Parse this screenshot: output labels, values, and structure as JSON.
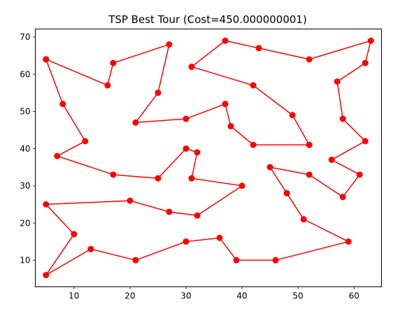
{
  "chart_data": {
    "type": "line",
    "title": "TSP Best Tour (Cost=450.000000001)",
    "xlabel": "",
    "ylabel": "",
    "xlim": [
      3.1,
      64.9
    ],
    "ylim": [
      2.85,
      72.15
    ],
    "xticks": [
      10,
      20,
      30,
      40,
      50,
      60
    ],
    "yticks": [
      10,
      20,
      30,
      40,
      50,
      60,
      70
    ],
    "grid": false,
    "legend": "none",
    "series": [
      {
        "color": "#ff0000",
        "marker": "circle",
        "points": [
          [
            5,
            64
          ],
          [
            16,
            57
          ],
          [
            17,
            63
          ],
          [
            27,
            68
          ],
          [
            25,
            55
          ],
          [
            21,
            47
          ],
          [
            30,
            48
          ],
          [
            37,
            52
          ],
          [
            38,
            46
          ],
          [
            42,
            41
          ],
          [
            52,
            41
          ],
          [
            49,
            49
          ],
          [
            42,
            57
          ],
          [
            31,
            62
          ],
          [
            37,
            69
          ],
          [
            43,
            67
          ],
          [
            52,
            64
          ],
          [
            63,
            69
          ],
          [
            62,
            63
          ],
          [
            57,
            58
          ],
          [
            58,
            48
          ],
          [
            62,
            42
          ],
          [
            56,
            37
          ],
          [
            61,
            33
          ],
          [
            58,
            27
          ],
          [
            52,
            33
          ],
          [
            45,
            35
          ],
          [
            48,
            28
          ],
          [
            51,
            21
          ],
          [
            59,
            15
          ],
          [
            46,
            10
          ],
          [
            39,
            10
          ],
          [
            36,
            16
          ],
          [
            30,
            15
          ],
          [
            21,
            10
          ],
          [
            13,
            13
          ],
          [
            5,
            6
          ],
          [
            10,
            17
          ],
          [
            5,
            25
          ],
          [
            20,
            26
          ],
          [
            27,
            23
          ],
          [
            32,
            22
          ],
          [
            40,
            30
          ],
          [
            31,
            32
          ],
          [
            32,
            39
          ],
          [
            30,
            40
          ],
          [
            25,
            32
          ],
          [
            17,
            33
          ],
          [
            7,
            38
          ],
          [
            12,
            42
          ],
          [
            8,
            52
          ],
          [
            5,
            64
          ]
        ]
      }
    ]
  }
}
